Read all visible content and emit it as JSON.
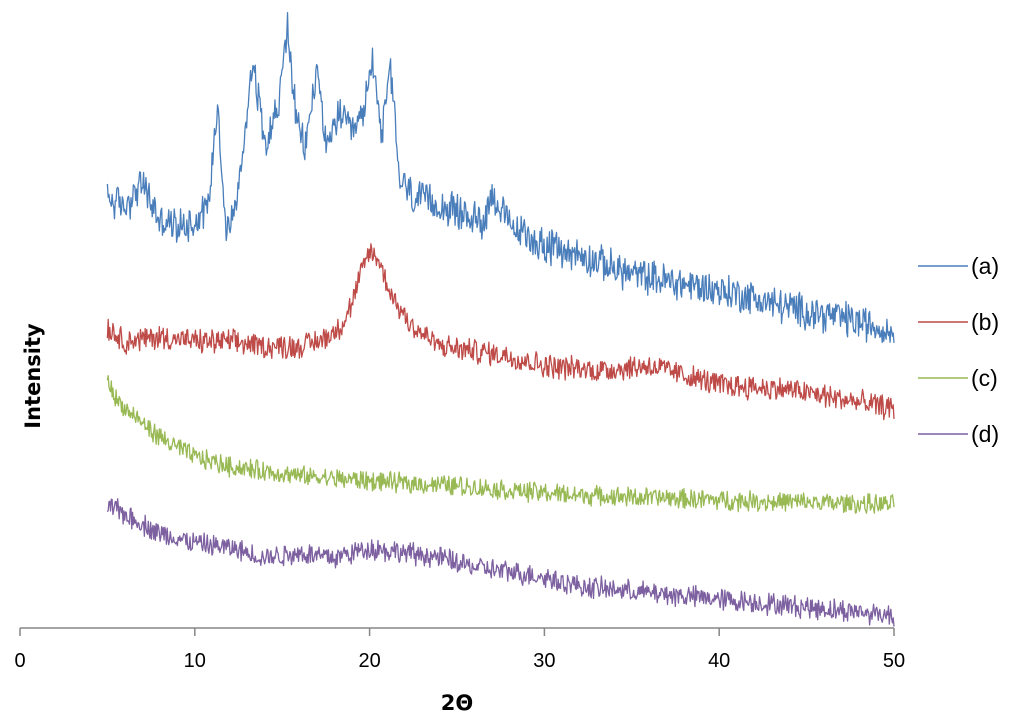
{
  "chart_data": {
    "type": "line",
    "title": "",
    "xlabel": "2Θ",
    "ylabel": "Intensity",
    "xlim": [
      0,
      50
    ],
    "xticks": [
      0,
      10,
      20,
      30,
      40,
      50
    ],
    "y_axis_visible": false,
    "grid": false,
    "legend_position": "right",
    "series": [
      {
        "name": "(a)",
        "color": "#4a7ebb",
        "x": [
          5,
          6,
          7,
          8,
          9,
          10,
          10.8,
          11.3,
          11.8,
          12.5,
          13.3,
          14,
          14.8,
          15.3,
          15.8,
          16.3,
          17,
          17.6,
          18.2,
          19,
          19.6,
          20.2,
          20.7,
          21.2,
          21.7,
          22.5,
          23.5,
          25,
          26.5,
          27,
          28,
          30,
          32,
          35,
          38,
          41,
          44,
          47,
          50
        ],
        "y": [
          63,
          61,
          66,
          58,
          57,
          58,
          62,
          83,
          55,
          64,
          92,
          75,
          82,
          99,
          79,
          73,
          90,
          72,
          81,
          76,
          80,
          92,
          76,
          90,
          67,
          63,
          62,
          60,
          58,
          64,
          57,
          53,
          51,
          47,
          45,
          43,
          40,
          38,
          35
        ]
      },
      {
        "name": "(b)",
        "color": "#be4b48",
        "x": [
          5,
          6,
          8,
          10,
          12,
          14,
          16,
          17,
          18,
          18.5,
          19,
          19.5,
          20,
          20.5,
          21,
          21.5,
          22.5,
          24,
          26,
          28,
          30,
          33,
          36,
          40,
          44,
          47,
          50
        ],
        "y": [
          36,
          33,
          34,
          33,
          33,
          32,
          32,
          33,
          35,
          37,
          41,
          47,
          52,
          50,
          45,
          41,
          36,
          32,
          31,
          30,
          28,
          27,
          28,
          24,
          23,
          21,
          19
        ]
      },
      {
        "name": "(c)",
        "color": "#98b954",
        "x": [
          5,
          5.5,
          6,
          7,
          8,
          9,
          10,
          12,
          14,
          16,
          18,
          20,
          22,
          25,
          28,
          32,
          36,
          40,
          45,
          50
        ],
        "y": [
          25,
          21,
          19,
          16,
          13,
          11,
          9,
          7,
          6,
          5,
          4.5,
          4,
          3.5,
          3,
          2,
          1,
          0.5,
          0,
          -0.5,
          -1
        ]
      },
      {
        "name": "(d)",
        "color": "#7d60a0",
        "x": [
          5,
          6,
          7,
          8,
          10,
          12,
          14,
          16,
          18,
          20,
          22,
          24,
          26,
          28,
          30,
          32,
          35,
          38,
          41,
          44,
          47,
          50
        ],
        "y": [
          -1,
          -3,
          -5,
          -7,
          -9,
          -10,
          -12,
          -11,
          -12,
          -10,
          -11,
          -12,
          -14,
          -15,
          -16,
          -18,
          -19,
          -20,
          -21,
          -22,
          -23,
          -24
        ]
      }
    ]
  }
}
